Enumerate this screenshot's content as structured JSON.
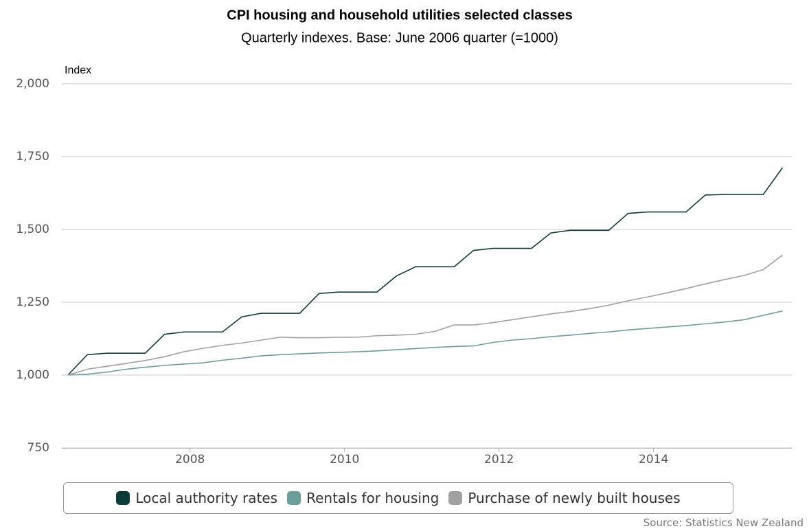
{
  "chart_data": {
    "type": "line",
    "title": "CPI housing and household utilities selected classes",
    "subtitle": "Quarterly indexes. Base: June 2006 quarter (=1000)",
    "y_label": "Index",
    "source": "Source: Statistics New Zealand",
    "x": [
      2006.42,
      2006.67,
      2006.92,
      2007.17,
      2007.42,
      2007.67,
      2007.92,
      2008.17,
      2008.42,
      2008.67,
      2008.92,
      2009.17,
      2009.42,
      2009.67,
      2009.92,
      2010.17,
      2010.42,
      2010.67,
      2010.92,
      2011.17,
      2011.42,
      2011.67,
      2011.92,
      2012.17,
      2012.42,
      2012.67,
      2012.92,
      2013.17,
      2013.42,
      2013.67,
      2013.92,
      2014.17,
      2014.42,
      2014.67,
      2014.92,
      2015.17,
      2015.42,
      2015.67
    ],
    "series": [
      {
        "name": "Local authority rates",
        "color": "#0d3d3a",
        "values": [
          1000,
          1070,
          1075,
          1075,
          1075,
          1140,
          1148,
          1148,
          1148,
          1200,
          1212,
          1212,
          1212,
          1280,
          1285,
          1285,
          1285,
          1340,
          1372,
          1372,
          1372,
          1428,
          1435,
          1435,
          1435,
          1488,
          1497,
          1497,
          1497,
          1555,
          1560,
          1560,
          1560,
          1618,
          1620,
          1620,
          1620,
          1712
        ]
      },
      {
        "name": "Rentals for housing",
        "color": "#6a9e9b",
        "values": [
          1000,
          1003,
          1010,
          1020,
          1027,
          1033,
          1038,
          1042,
          1051,
          1058,
          1066,
          1070,
          1073,
          1076,
          1078,
          1080,
          1083,
          1087,
          1091,
          1095,
          1098,
          1100,
          1112,
          1120,
          1125,
          1132,
          1137,
          1143,
          1148,
          1155,
          1160,
          1165,
          1170,
          1176,
          1182,
          1190,
          1205,
          1220
        ]
      },
      {
        "name": "Purchase of newly built houses",
        "color": "#a0a0a0",
        "values": [
          1000,
          1020,
          1030,
          1040,
          1050,
          1063,
          1080,
          1092,
          1102,
          1110,
          1120,
          1130,
          1128,
          1128,
          1130,
          1130,
          1135,
          1137,
          1140,
          1150,
          1172,
          1172,
          1180,
          1190,
          1200,
          1210,
          1218,
          1228,
          1240,
          1255,
          1268,
          1282,
          1297,
          1313,
          1328,
          1342,
          1362,
          1412
        ]
      }
    ],
    "xlim": [
      2006.34,
      2015.79
    ],
    "xticks": [
      2008,
      2010,
      2012,
      2014
    ],
    "ylim": [
      750,
      2000
    ],
    "yticks": [
      750,
      {
        "value": 1000,
        "label": "1,000"
      },
      {
        "value": 1250,
        "label": "1,250"
      },
      {
        "value": 1500,
        "label": "1,500"
      },
      {
        "value": 1750,
        "label": "1,750"
      },
      {
        "value": 2000,
        "label": "2,000"
      }
    ],
    "grid": true
  }
}
